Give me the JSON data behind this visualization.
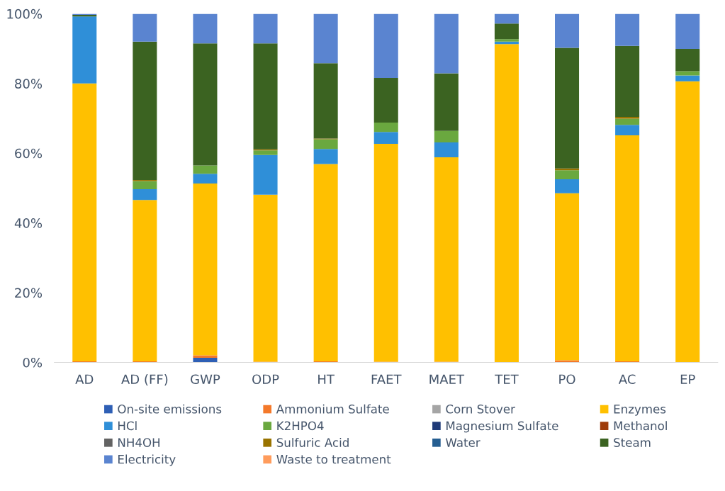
{
  "chart_data": {
    "type": "bar",
    "stacked": true,
    "legend": "bottom",
    "grid": false,
    "categories": [
      "AD",
      "AD (FF)",
      "GWP",
      "ODP",
      "HT",
      "FAET",
      "MAET",
      "TET",
      "PO",
      "AC",
      "EP"
    ],
    "ylim": [
      0,
      100
    ],
    "yticks": [
      {
        "value": 0,
        "label": "0%"
      },
      {
        "value": 20,
        "label": "20%"
      },
      {
        "value": 40,
        "label": "40%"
      },
      {
        "value": 60,
        "label": "60%"
      },
      {
        "value": 80,
        "label": "80%"
      },
      {
        "value": 100,
        "label": "100%"
      }
    ],
    "series": [
      {
        "name": "On-site emissions",
        "color": "#2e5fb5",
        "values": [
          0,
          0,
          1.3,
          0,
          0,
          0,
          0,
          0,
          0,
          0,
          0
        ]
      },
      {
        "name": "Ammonium Sulfate",
        "color": "#f4792a",
        "values": [
          0.3,
          0.3,
          0.7,
          0.2,
          0.3,
          0.2,
          0.2,
          0,
          0.6,
          0.3,
          0
        ]
      },
      {
        "name": "Corn Stover",
        "color": "#a5a5a5",
        "values": [
          0,
          0,
          0,
          0,
          0,
          0,
          0,
          0,
          0,
          0,
          0
        ]
      },
      {
        "name": "Enzymes",
        "color": "#ffc000",
        "values": [
          79.7,
          46.3,
          49.3,
          47.9,
          56.6,
          62.5,
          58.6,
          91.3,
          47.9,
          64.8,
          80.6
        ]
      },
      {
        "name": "HCl",
        "color": "#2f8fd8",
        "values": [
          19.2,
          3.1,
          2.8,
          11.4,
          4.3,
          3.4,
          4.3,
          0.7,
          4.0,
          3.0,
          1.7
        ]
      },
      {
        "name": "K2HPO4",
        "color": "#6aa83f",
        "values": [
          0,
          2.3,
          2.4,
          1.3,
          2.8,
          2.7,
          3.3,
          0.7,
          2.6,
          1.8,
          1.2
        ]
      },
      {
        "name": "Magnesium Sulfate",
        "color": "#1f3a78",
        "values": [
          0,
          0,
          0,
          0,
          0,
          0,
          0,
          0,
          0,
          0,
          0
        ]
      },
      {
        "name": "Methanol",
        "color": "#9e3c0b",
        "values": [
          0,
          0,
          0,
          0,
          0,
          0,
          0,
          0,
          0,
          0,
          0
        ]
      },
      {
        "name": "NH4OH",
        "color": "#636363",
        "values": [
          0,
          0,
          0,
          0,
          0,
          0,
          0,
          0,
          0,
          0,
          0
        ]
      },
      {
        "name": "Sulfuric Acid",
        "color": "#997300",
        "values": [
          0,
          0.3,
          0,
          0.3,
          0.2,
          0,
          0,
          0,
          0.5,
          0.5,
          0
        ]
      },
      {
        "name": "Water",
        "color": "#255e91",
        "values": [
          0,
          0,
          0,
          0,
          0,
          0,
          0,
          0,
          0,
          0,
          0
        ]
      },
      {
        "name": "Steam",
        "color": "#3b6321",
        "values": [
          0.5,
          39.7,
          35.0,
          30.4,
          21.6,
          12.8,
          16.5,
          4.5,
          34.6,
          20.4,
          6.4
        ]
      },
      {
        "name": "Electricity",
        "color": "#5a84d0",
        "values": [
          0.3,
          8.0,
          8.5,
          8.5,
          14.2,
          18.4,
          17.1,
          2.8,
          9.8,
          9.2,
          10.1
        ]
      },
      {
        "name": "Waste to treatment",
        "color": "#ff9c5c",
        "values": [
          0,
          0,
          0,
          0,
          0,
          0,
          0,
          0,
          0,
          0,
          0
        ]
      }
    ]
  }
}
